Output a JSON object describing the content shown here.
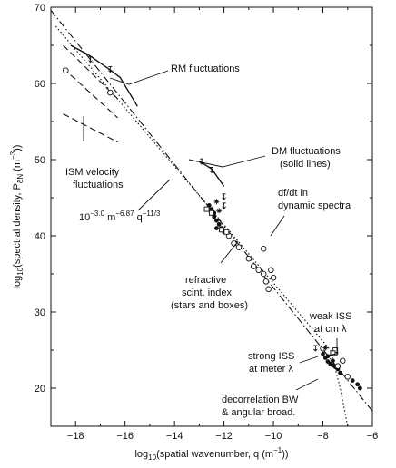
{
  "chart_data": {
    "type": "scatter",
    "xlabel_main": "log",
    "xlabel_sub": "10",
    "xlabel_rest": "(spatial wavenumber, q (m",
    "xlabel_sup": "−1",
    "xlabel_end": "))",
    "ylabel_main": "log",
    "ylabel_sub": "10",
    "ylabel_rest": "(spectral density, P",
    "ylabel_sub2": "δN",
    "ylabel_rest2": " (m",
    "ylabel_sup": "−3",
    "ylabel_end": "))",
    "xlim": [
      -19,
      -6
    ],
    "ylim": [
      15,
      70
    ],
    "xticks": [
      -18,
      -16,
      -14,
      -12,
      -10,
      -8,
      -6
    ],
    "xtick_labels": [
      "−18",
      "−16",
      "−14",
      "−12",
      "−10",
      "−8",
      "−6"
    ],
    "yticks": [
      20,
      30,
      40,
      50,
      60,
      70
    ],
    "ytick_labels": [
      "20",
      "30",
      "40",
      "50",
      "60",
      "70"
    ],
    "annotations": {
      "rm": "RM fluctuations",
      "dm_1": "DM fluctuations",
      "dm_2": "(solid lines)",
      "ism_1": "ISM velocity",
      "ism_2": "fluctuations",
      "fit_coef": "10",
      "fit_coef_sup": "−3.0",
      "fit_unit": " m",
      "fit_unit_sup": "−6.87",
      "fit_q": " q",
      "fit_q_sup": "−11/3",
      "dfdt_1": "df/dt in",
      "dfdt_2": "dynamic spectra",
      "refr_1": "refractive",
      "refr_2": "scint. index",
      "refr_3": "(stars and boxes)",
      "weak_1": "weak ISS",
      "weak_2": "at cm λ",
      "strong_1": "strong ISS",
      "strong_2": "at meter λ",
      "decor_1": "decorrelation BW",
      "decor_2": "& angular broad."
    },
    "series": [
      {
        "kind": "line",
        "style": "dashdot",
        "points": [
          [
            -19,
            69.6
          ],
          [
            -6,
            17.0
          ]
        ]
      },
      {
        "kind": "line",
        "style": "dotted",
        "points": [
          [
            -18.8,
            67.5
          ],
          [
            -7.7,
            25.0
          ],
          [
            -7.3,
            20.0
          ],
          [
            -7.0,
            15.0
          ]
        ]
      },
      {
        "kind": "line",
        "style": "solid",
        "points": [
          [
            -18.2,
            65.0
          ],
          [
            -17.5,
            63.8
          ],
          [
            -16.7,
            62.0
          ],
          [
            -16.2,
            60.8
          ],
          [
            -15.5,
            57.0
          ]
        ]
      },
      {
        "kind": "line",
        "style": "solid",
        "points": [
          [
            -13.0,
            49.8
          ],
          [
            -12.5,
            48.8
          ],
          [
            -12.0,
            46.5
          ]
        ]
      },
      {
        "kind": "line",
        "style": "dashed",
        "points": [
          [
            -18.5,
            65.0
          ],
          [
            -16.3,
            58.0
          ]
        ]
      },
      {
        "kind": "line",
        "style": "dashed",
        "points": [
          [
            -18.5,
            62.0
          ],
          [
            -16.3,
            55.5
          ]
        ]
      },
      {
        "kind": "line",
        "style": "dashed",
        "points": [
          [
            -18.5,
            56.0
          ],
          [
            -16.3,
            52.3
          ]
        ]
      },
      {
        "kind": "scatter",
        "marker": "filled",
        "points": [
          [
            -12.6,
            44.0
          ],
          [
            -12.5,
            43.5
          ],
          [
            -12.4,
            43.0
          ],
          [
            -12.3,
            42.0
          ],
          [
            -12.2,
            41.5
          ],
          [
            -12.1,
            41.0
          ],
          [
            -12.0,
            40.5
          ],
          [
            -12.3,
            41.0
          ],
          [
            -12.4,
            42.5
          ],
          [
            -8.0,
            24.5
          ],
          [
            -7.9,
            24.0
          ],
          [
            -7.8,
            23.5
          ],
          [
            -7.7,
            23.2
          ],
          [
            -7.6,
            23.0
          ],
          [
            -7.5,
            22.8
          ],
          [
            -7.4,
            22.5
          ],
          [
            -7.3,
            22.0
          ],
          [
            -6.8,
            21.0
          ],
          [
            -6.6,
            20.5
          ],
          [
            -6.5,
            20.0
          ],
          [
            -7.8,
            24.2
          ],
          [
            -7.6,
            23.6
          ]
        ]
      },
      {
        "kind": "scatter",
        "marker": "open",
        "points": [
          [
            -18.4,
            61.7
          ],
          [
            -16.6,
            58.8
          ],
          [
            -11.8,
            40.0
          ],
          [
            -11.6,
            39.0
          ],
          [
            -11.4,
            38.5
          ],
          [
            -11.0,
            37.0
          ],
          [
            -10.8,
            36.0
          ],
          [
            -10.6,
            35.5
          ],
          [
            -10.4,
            35.0
          ],
          [
            -10.3,
            34.0
          ],
          [
            -10.2,
            33.0
          ],
          [
            -10.0,
            34.5
          ],
          [
            -10.1,
            35.5
          ],
          [
            -10.4,
            38.3
          ],
          [
            -8.0,
            25.2
          ],
          [
            -7.5,
            24.6
          ],
          [
            -7.2,
            23.6
          ],
          [
            -7.0,
            21.5
          ],
          [
            -7.4,
            22.9
          ]
        ]
      },
      {
        "kind": "scatter",
        "marker": "box",
        "points": [
          [
            -12.7,
            43.5
          ],
          [
            -12.5,
            43.0
          ],
          [
            -12.1,
            40.8
          ],
          [
            -11.9,
            40.5
          ],
          [
            -7.5,
            25.0
          ],
          [
            -7.6,
            24.6
          ]
        ]
      },
      {
        "kind": "scatter",
        "marker": "star",
        "points": [
          [
            -12.3,
            44.5
          ],
          [
            -12.2,
            43.3
          ],
          [
            -7.9,
            25.3
          ]
        ]
      },
      {
        "kind": "scatter",
        "marker": "uplimit",
        "points": [
          [
            -12.9,
            50.1
          ],
          [
            -12.5,
            49.0
          ],
          [
            -12.0,
            45.5
          ],
          [
            -12.0,
            44.3
          ],
          [
            -17.4,
            63.5
          ],
          [
            -16.6,
            62.2
          ],
          [
            -8.3,
            25.6
          ]
        ]
      }
    ]
  }
}
